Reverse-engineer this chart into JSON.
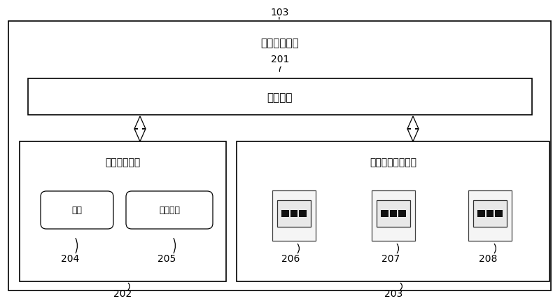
{
  "bg_color": "#ffffff",
  "text_color": "#000000",
  "border_color": "#000000",
  "label_103": "103",
  "label_201": "201",
  "label_202": "202",
  "label_203": "203",
  "label_204": "204",
  "label_205": "205",
  "label_206": "206",
  "label_207": "207",
  "label_208": "208",
  "text_data_storage": "数据存储单元",
  "text_data_bus": "数据总线",
  "text_internal_storage": "内置存储设备",
  "text_external_storage": "外部存储设备接口",
  "text_hard_disk": "硬盘",
  "text_flash": "内置闪存",
  "font_size_label": 10,
  "font_size_title": 11,
  "font_size_box_title": 10,
  "font_size_small": 9
}
